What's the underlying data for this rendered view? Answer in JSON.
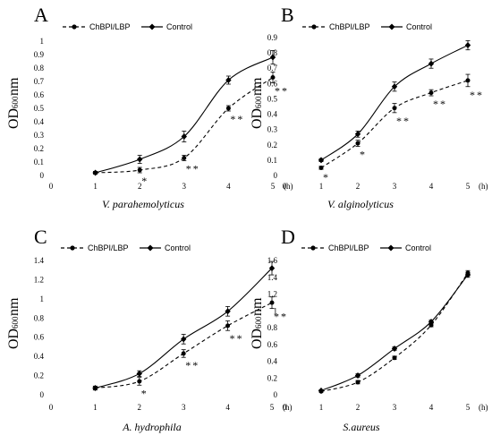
{
  "chart_data": [
    {
      "type": "line",
      "panel": "A",
      "xlabel": "V. parahemolyticus",
      "ylabel": {
        "main": "OD",
        "sub": "600",
        "unit": "nm"
      },
      "x_unit": "(h)",
      "x": [
        1,
        2,
        3,
        4,
        5
      ],
      "x_ticks": [
        "0",
        "1",
        "2",
        "3",
        "4",
        "5"
      ],
      "ylim": [
        0,
        1
      ],
      "y_ticks": [
        "0",
        "0.1",
        "0.2",
        "0.3",
        "0.4",
        "0.5",
        "0.6",
        "0.7",
        "0.8",
        "0.9",
        "1"
      ],
      "series": [
        {
          "name": "ChBPI/LBP",
          "values": [
            0.02,
            0.04,
            0.13,
            0.5,
            0.73
          ],
          "errors": [
            0.01,
            0.02,
            0.02,
            0.02,
            0.04
          ],
          "sig": [
            "",
            "*",
            "**",
            "**",
            "**"
          ]
        },
        {
          "name": "Control",
          "values": [
            0.02,
            0.12,
            0.29,
            0.71,
            0.88
          ],
          "errors": [
            0.01,
            0.03,
            0.04,
            0.03,
            0.05
          ]
        }
      ]
    },
    {
      "type": "line",
      "panel": "B",
      "xlabel": "V. alginolyticus",
      "ylabel": {
        "main": "OD",
        "sub": "600",
        "unit": "nm"
      },
      "x_unit": "(h)",
      "x": [
        1,
        2,
        3,
        4,
        5
      ],
      "x_ticks": [
        "0",
        "1",
        "2",
        "3",
        "4",
        "5"
      ],
      "ylim": [
        0,
        0.9
      ],
      "y_ticks": [
        "0",
        "0.1",
        "0.2",
        "0.3",
        "0.4",
        "0.5",
        "0.6",
        "0.7",
        "0.8",
        "0.9"
      ],
      "series": [
        {
          "name": "ChBPI/LBP",
          "values": [
            0.05,
            0.21,
            0.44,
            0.54,
            0.62
          ],
          "errors": [
            0.01,
            0.02,
            0.03,
            0.02,
            0.04
          ],
          "sig": [
            "*",
            "*",
            "**",
            "**",
            "**"
          ]
        },
        {
          "name": "Control",
          "values": [
            0.1,
            0.27,
            0.58,
            0.73,
            0.85
          ],
          "errors": [
            0.01,
            0.02,
            0.03,
            0.03,
            0.03
          ]
        }
      ]
    },
    {
      "type": "line",
      "panel": "C",
      "xlabel": "A. hydrophila",
      "ylabel": {
        "main": "OD",
        "sub": "600",
        "unit": "nm"
      },
      "x_unit": "(h)",
      "x": [
        1,
        2,
        3,
        4,
        5
      ],
      "x_ticks": [
        "0",
        "1",
        "2",
        "3",
        "4",
        "5"
      ],
      "ylim": [
        0,
        1.4
      ],
      "y_ticks": [
        "0",
        "0.2",
        "0.4",
        "0.6",
        "0.8",
        "1",
        "1.2",
        "1.4"
      ],
      "series": [
        {
          "name": "ChBPI/LBP",
          "values": [
            0.07,
            0.14,
            0.43,
            0.72,
            0.96
          ],
          "errors": [
            0.02,
            0.04,
            0.04,
            0.05,
            0.06
          ],
          "sig": [
            "",
            "*",
            "**",
            "**",
            "**"
          ]
        },
        {
          "name": "Control",
          "values": [
            0.07,
            0.22,
            0.58,
            0.87,
            1.32
          ],
          "errors": [
            0.02,
            0.03,
            0.05,
            0.05,
            0.07
          ]
        }
      ]
    },
    {
      "type": "line",
      "panel": "D",
      "xlabel": "S.aureus",
      "ylabel": {
        "main": "OD",
        "sub": "600",
        "unit": "nm"
      },
      "x_unit": "(h)",
      "x": [
        1,
        2,
        3,
        4,
        5
      ],
      "x_ticks": [
        "0",
        "1",
        "2",
        "3",
        "4",
        "5"
      ],
      "ylim": [
        0,
        1.6
      ],
      "y_ticks": [
        "0",
        "0.2",
        "0.4",
        "0.6",
        "0.8",
        "1",
        "1.2",
        "1.4",
        "1.6"
      ],
      "series": [
        {
          "name": "ChBPI/LBP",
          "values": [
            0.04,
            0.15,
            0.44,
            0.83,
            1.45
          ],
          "errors": [
            0.01,
            0.02,
            0.02,
            0.02,
            0.03
          ],
          "sig": [
            "",
            "",
            "",
            "",
            ""
          ]
        },
        {
          "name": "Control",
          "values": [
            0.05,
            0.23,
            0.55,
            0.87,
            1.43
          ],
          "errors": [
            0.01,
            0.02,
            0.02,
            0.02,
            0.03
          ]
        }
      ]
    }
  ]
}
